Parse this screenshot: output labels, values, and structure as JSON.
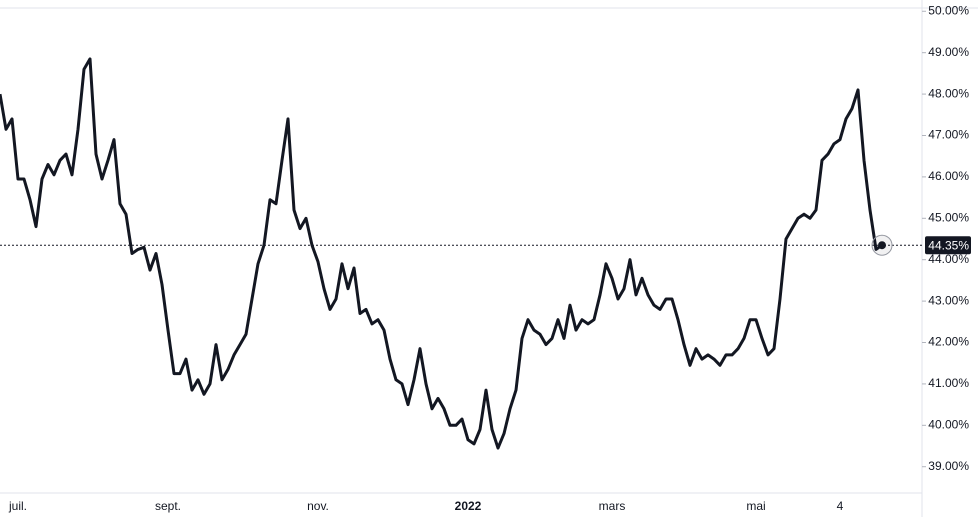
{
  "chart_data": {
    "type": "line",
    "categories": [
      null,
      null,
      null,
      "juil.",
      null,
      null,
      null,
      null,
      null,
      null,
      null,
      null,
      null,
      null,
      null,
      null,
      null,
      null,
      null,
      null,
      null,
      null,
      null,
      null,
      null,
      null,
      null,
      null,
      "sept.",
      null,
      null,
      null,
      null,
      null,
      null,
      null,
      null,
      null,
      null,
      null,
      null,
      null,
      null,
      null,
      null,
      null,
      null,
      null,
      null,
      null,
      null,
      null,
      null,
      "nov.",
      null,
      null,
      null,
      null,
      null,
      null,
      null,
      null,
      null,
      null,
      null,
      null,
      null,
      null,
      null,
      null,
      null,
      null,
      null,
      null,
      null,
      null,
      null,
      null,
      "2022",
      null,
      null,
      null,
      null,
      null,
      null,
      null,
      null,
      null,
      null,
      null,
      null,
      null,
      null,
      null,
      null,
      null,
      null,
      null,
      null,
      null,
      null,
      null,
      "mars",
      null,
      null,
      null,
      null,
      null,
      null,
      null,
      null,
      null,
      null,
      null,
      null,
      null,
      null,
      null,
      null,
      null,
      null,
      null,
      null,
      null,
      null,
      null,
      "mai",
      null,
      null,
      null,
      null,
      null,
      null,
      null,
      null,
      null,
      null,
      null,
      null,
      null,
      "4",
      null,
      null,
      null,
      null,
      null,
      null,
      null
    ],
    "values": [
      48.0,
      47.15,
      47.4,
      45.95,
      45.95,
      45.45,
      44.8,
      45.95,
      46.3,
      46.05,
      46.4,
      46.55,
      46.05,
      47.15,
      48.6,
      48.85,
      46.55,
      45.95,
      46.4,
      46.9,
      45.35,
      45.1,
      44.15,
      44.25,
      44.3,
      43.75,
      44.15,
      43.4,
      42.3,
      41.25,
      41.25,
      41.6,
      40.85,
      41.1,
      40.75,
      41.0,
      41.95,
      41.1,
      41.35,
      41.7,
      41.95,
      42.2,
      43.05,
      43.9,
      44.35,
      45.45,
      45.35,
      46.4,
      47.4,
      45.2,
      44.75,
      45.0,
      44.35,
      43.95,
      43.3,
      42.8,
      43.05,
      43.9,
      43.3,
      43.8,
      42.7,
      42.8,
      42.45,
      42.55,
      42.3,
      41.6,
      41.1,
      41.0,
      40.5,
      41.1,
      41.85,
      41.0,
      40.4,
      40.65,
      40.4,
      40.0,
      40.0,
      40.15,
      39.65,
      39.55,
      39.9,
      40.85,
      39.9,
      39.45,
      39.8,
      40.4,
      40.85,
      42.1,
      42.55,
      42.3,
      42.2,
      41.95,
      42.1,
      42.55,
      42.1,
      42.9,
      42.3,
      42.55,
      42.45,
      42.55,
      43.15,
      43.9,
      43.55,
      43.05,
      43.3,
      44.0,
      43.15,
      43.55,
      43.15,
      42.9,
      42.8,
      43.05,
      43.05,
      42.55,
      41.95,
      41.45,
      41.85,
      41.6,
      41.7,
      41.6,
      41.45,
      41.7,
      41.7,
      41.85,
      42.1,
      42.55,
      42.55,
      42.1,
      41.7,
      41.85,
      43.05,
      44.5,
      44.75,
      45.0,
      45.1,
      45.0,
      45.2,
      46.4,
      46.55,
      46.8,
      46.9,
      47.4,
      47.65,
      48.1,
      46.4,
      45.2,
      44.25,
      44.35
    ],
    "color": "#131722",
    "ylim": [
      38.8,
      50.2
    ],
    "yticks": [
      {
        "value": 39,
        "label": "39.00%"
      },
      {
        "value": 40,
        "label": "40.00%"
      },
      {
        "value": 41,
        "label": "41.00%"
      },
      {
        "value": 42,
        "label": "42.00%"
      },
      {
        "value": 43,
        "label": "43.00%"
      },
      {
        "value": 44,
        "label": "44.00%"
      },
      {
        "value": 45,
        "label": "45.00%"
      },
      {
        "value": 46,
        "label": "46.00%"
      },
      {
        "value": 47,
        "label": "47.00%"
      },
      {
        "value": 48,
        "label": "48.00%"
      },
      {
        "value": 49,
        "label": "49.00%"
      },
      {
        "value": 50,
        "label": "50.00%"
      }
    ],
    "current_value": 44.35,
    "current_label": "44.35%"
  }
}
